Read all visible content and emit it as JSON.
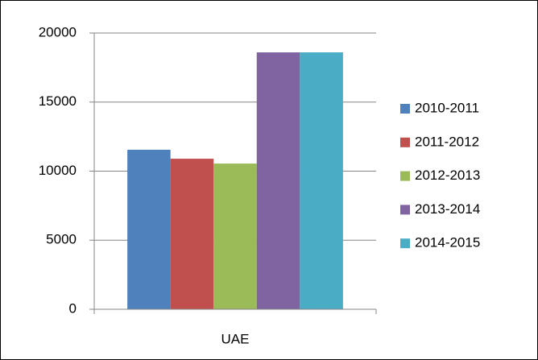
{
  "chart_data": {
    "type": "bar",
    "categories": [
      "UAE"
    ],
    "series": [
      {
        "name": "2010-2011",
        "color": "#4f81bd",
        "values": [
          11550
        ]
      },
      {
        "name": "2011-2012",
        "color": "#c0504d",
        "values": [
          10900
        ]
      },
      {
        "name": "2012-2013",
        "color": "#9bbb59",
        "values": [
          10550
        ]
      },
      {
        "name": "2013-2014",
        "color": "#8064a2",
        "values": [
          18600
        ]
      },
      {
        "name": "2014-2015",
        "color": "#4bacc6",
        "values": [
          18600
        ]
      }
    ],
    "ylim": [
      0,
      20000
    ],
    "yticks": [
      0,
      5000,
      10000,
      15000,
      20000
    ],
    "grid": true,
    "legend": "right"
  }
}
